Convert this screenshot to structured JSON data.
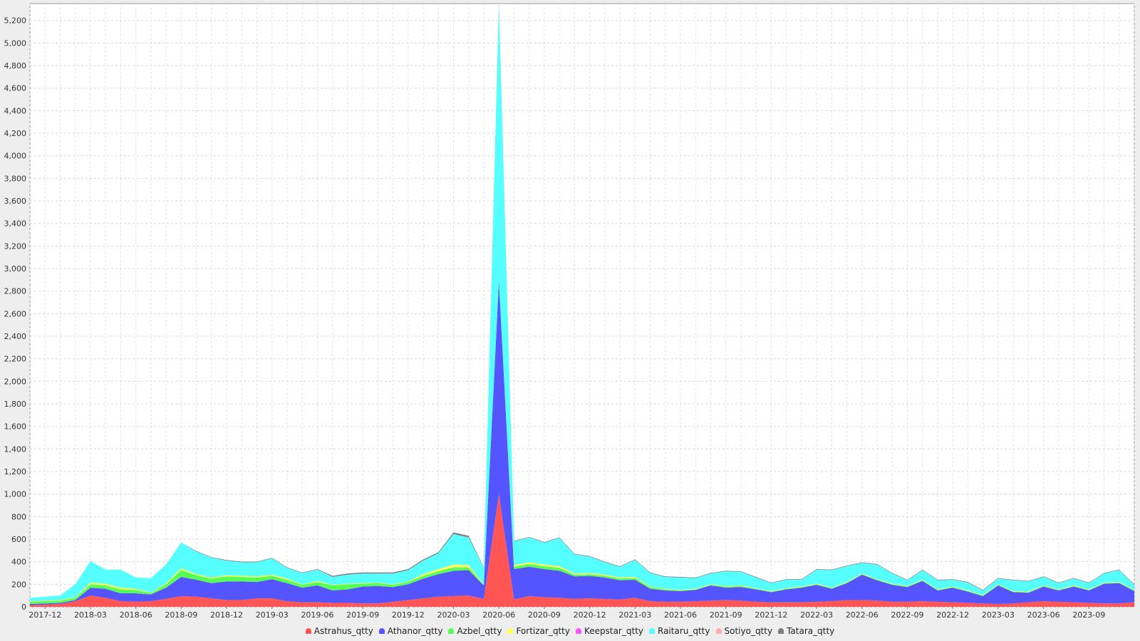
{
  "chart_data": {
    "type": "area",
    "stacked": true,
    "title": "",
    "xlabel": "",
    "ylabel": "",
    "ylim": [
      0,
      5350
    ],
    "y_ticks": [
      0,
      200,
      400,
      600,
      800,
      1000,
      1200,
      1400,
      1600,
      1800,
      2000,
      2200,
      2400,
      2600,
      2800,
      3000,
      3200,
      3400,
      3600,
      3800,
      4000,
      4200,
      4400,
      4600,
      4800,
      5000,
      5200
    ],
    "x_tick_labels": [
      "2017-12",
      "2018-03",
      "2018-06",
      "2018-09",
      "2018-12",
      "2019-03",
      "2019-06",
      "2019-09",
      "2019-12",
      "2020-03",
      "2020-06",
      "2020-09",
      "2020-12",
      "2021-03",
      "2021-06",
      "2021-09",
      "2021-12",
      "2022-03",
      "2022-06",
      "2022-09",
      "2022-12",
      "2023-03",
      "2023-06",
      "2023-09"
    ],
    "grid": true,
    "legend_position": "bottom",
    "x": [
      "2017-11",
      "2017-12",
      "2018-01",
      "2018-02",
      "2018-03",
      "2018-04",
      "2018-05",
      "2018-06",
      "2018-07",
      "2018-08",
      "2018-09",
      "2018-10",
      "2018-11",
      "2018-12",
      "2019-01",
      "2019-02",
      "2019-03",
      "2019-04",
      "2019-05",
      "2019-06",
      "2019-07",
      "2019-08",
      "2019-09",
      "2019-10",
      "2019-11",
      "2019-12",
      "2020-01",
      "2020-02",
      "2020-03",
      "2020-04",
      "2020-05",
      "2020-06",
      "2020-07",
      "2020-08",
      "2020-09",
      "2020-10",
      "2020-11",
      "2020-12",
      "2021-01",
      "2021-02",
      "2021-03",
      "2021-04",
      "2021-05",
      "2021-06",
      "2021-07",
      "2021-08",
      "2021-09",
      "2021-10",
      "2021-11",
      "2021-12",
      "2022-01",
      "2022-02",
      "2022-03",
      "2022-04",
      "2022-05",
      "2022-06",
      "2022-07",
      "2022-08",
      "2022-09",
      "2022-10",
      "2022-11",
      "2022-12",
      "2023-01",
      "2023-02",
      "2023-03",
      "2023-04",
      "2023-05",
      "2023-06",
      "2023-07",
      "2023-08",
      "2023-09",
      "2023-10",
      "2023-11",
      "2023-12"
    ],
    "series": [
      {
        "name": "Astrahus_qtty",
        "color": "#ff5555",
        "values": [
          15,
          20,
          25,
          50,
          100,
          80,
          50,
          45,
          50,
          70,
          95,
          90,
          75,
          60,
          60,
          75,
          75,
          50,
          40,
          40,
          35,
          35,
          30,
          30,
          45,
          60,
          75,
          90,
          95,
          100,
          70,
          1000,
          65,
          95,
          85,
          80,
          70,
          75,
          70,
          65,
          80,
          50,
          45,
          45,
          50,
          55,
          60,
          55,
          45,
          40,
          40,
          40,
          45,
          50,
          60,
          60,
          55,
          45,
          45,
          50,
          45,
          40,
          35,
          30,
          25,
          30,
          40,
          50,
          45,
          40,
          35,
          30,
          30,
          40
        ]
      },
      {
        "name": "Athanor_qtty",
        "color": "#5555ff",
        "values": [
          10,
          10,
          10,
          10,
          70,
          80,
          70,
          75,
          60,
          100,
          170,
          150,
          135,
          165,
          165,
          145,
          170,
          160,
          130,
          150,
          110,
          120,
          150,
          155,
          130,
          140,
          175,
          200,
          225,
          225,
          120,
          1890,
          270,
          260,
          250,
          240,
          200,
          200,
          190,
          170,
          160,
          110,
          100,
          95,
          100,
          135,
          110,
          120,
          110,
          90,
          115,
          130,
          150,
          110,
          150,
          225,
          180,
          150,
          130,
          180,
          100,
          130,
          100,
          65,
          165,
          100,
          85,
          130,
          100,
          140,
          110,
          175,
          180,
          100
        ]
      },
      {
        "name": "Azbel_qtty",
        "color": "#55ff55",
        "values": [
          20,
          20,
          20,
          20,
          30,
          30,
          35,
          30,
          10,
          30,
          60,
          40,
          40,
          45,
          40,
          40,
          30,
          30,
          25,
          30,
          45,
          45,
          25,
          25,
          20,
          20,
          25,
          25,
          30,
          25,
          5,
          5,
          20,
          25,
          25,
          25,
          15,
          15,
          15,
          15,
          15,
          15,
          10,
          5,
          5,
          5,
          10,
          10,
          5,
          5,
          5,
          5,
          5,
          5,
          5,
          5,
          5,
          5,
          5,
          5,
          5,
          5,
          5,
          5,
          5,
          5,
          5,
          5,
          5,
          5,
          5,
          5,
          5,
          5
        ]
      },
      {
        "name": "Fortizar_qtty",
        "color": "#ffff55",
        "values": [
          5,
          5,
          5,
          5,
          15,
          15,
          15,
          10,
          5,
          10,
          15,
          10,
          10,
          10,
          10,
          10,
          10,
          10,
          5,
          10,
          5,
          5,
          5,
          5,
          5,
          5,
          15,
          20,
          25,
          20,
          5,
          5,
          15,
          15,
          15,
          15,
          10,
          10,
          10,
          10,
          10,
          5,
          5,
          5,
          5,
          5,
          5,
          5,
          5,
          5,
          5,
          5,
          5,
          5,
          5,
          5,
          5,
          5,
          5,
          5,
          5,
          5,
          5,
          5,
          5,
          5,
          5,
          5,
          5,
          5,
          5,
          5,
          5,
          5
        ]
      },
      {
        "name": "Keepstar_qtty",
        "color": "#ff55ff",
        "values": [
          0,
          0,
          0,
          0,
          0,
          0,
          0,
          0,
          0,
          0,
          0,
          0,
          0,
          0,
          0,
          0,
          0,
          0,
          0,
          0,
          0,
          0,
          0,
          0,
          0,
          0,
          0,
          0,
          0,
          0,
          0,
          0,
          0,
          0,
          0,
          0,
          0,
          0,
          0,
          0,
          0,
          0,
          0,
          0,
          0,
          0,
          0,
          0,
          0,
          0,
          0,
          0,
          0,
          0,
          0,
          0,
          0,
          0,
          0,
          0,
          0,
          0,
          0,
          0,
          0,
          0,
          0,
          0,
          0,
          0,
          0,
          0,
          0,
          0
        ]
      },
      {
        "name": "Raitaru_qtty",
        "color": "#55ffff",
        "values": [
          30,
          35,
          40,
          115,
          190,
          125,
          160,
          100,
          130,
          165,
          230,
          200,
          175,
          130,
          120,
          125,
          145,
          95,
          100,
          100,
          70,
          80,
          85,
          80,
          95,
          100,
          120,
          140,
          270,
          245,
          145,
          2440,
          210,
          220,
          195,
          250,
          170,
          145,
          110,
          95,
          150,
          120,
          105,
          110,
          95,
          95,
          130,
          120,
          95,
          70,
          75,
          60,
          125,
          155,
          140,
          95,
          130,
          90,
          50,
          85,
          80,
          60,
          70,
          40,
          50,
          95,
          90,
          75,
          55,
          60,
          55,
          80,
          105,
          45
        ]
      },
      {
        "name": "Sotiyo_qtty",
        "color": "#ffafaf",
        "values": [
          0,
          0,
          0,
          0,
          0,
          0,
          0,
          0,
          0,
          0,
          0,
          0,
          0,
          0,
          0,
          0,
          0,
          0,
          0,
          0,
          0,
          0,
          0,
          0,
          0,
          0,
          0,
          0,
          0,
          0,
          0,
          0,
          0,
          0,
          0,
          0,
          0,
          0,
          0,
          0,
          0,
          0,
          0,
          0,
          0,
          0,
          0,
          0,
          0,
          0,
          0,
          0,
          0,
          0,
          0,
          0,
          0,
          0,
          0,
          0,
          0,
          0,
          0,
          0,
          0,
          0,
          0,
          0,
          0,
          0,
          0,
          0,
          0,
          0
        ]
      },
      {
        "name": "Tatara_qtty",
        "color": "#808080",
        "values": [
          0,
          0,
          0,
          0,
          0,
          0,
          0,
          0,
          0,
          0,
          0,
          5,
          5,
          5,
          5,
          5,
          5,
          5,
          5,
          5,
          10,
          10,
          10,
          10,
          10,
          10,
          10,
          10,
          15,
          15,
          5,
          15,
          5,
          5,
          5,
          5,
          5,
          5,
          5,
          5,
          5,
          5,
          5,
          5,
          5,
          5,
          5,
          5,
          5,
          5,
          5,
          5,
          5,
          5,
          5,
          5,
          5,
          5,
          5,
          5,
          5,
          5,
          5,
          5,
          5,
          5,
          5,
          5,
          5,
          5,
          5,
          5,
          5,
          5
        ]
      }
    ]
  }
}
